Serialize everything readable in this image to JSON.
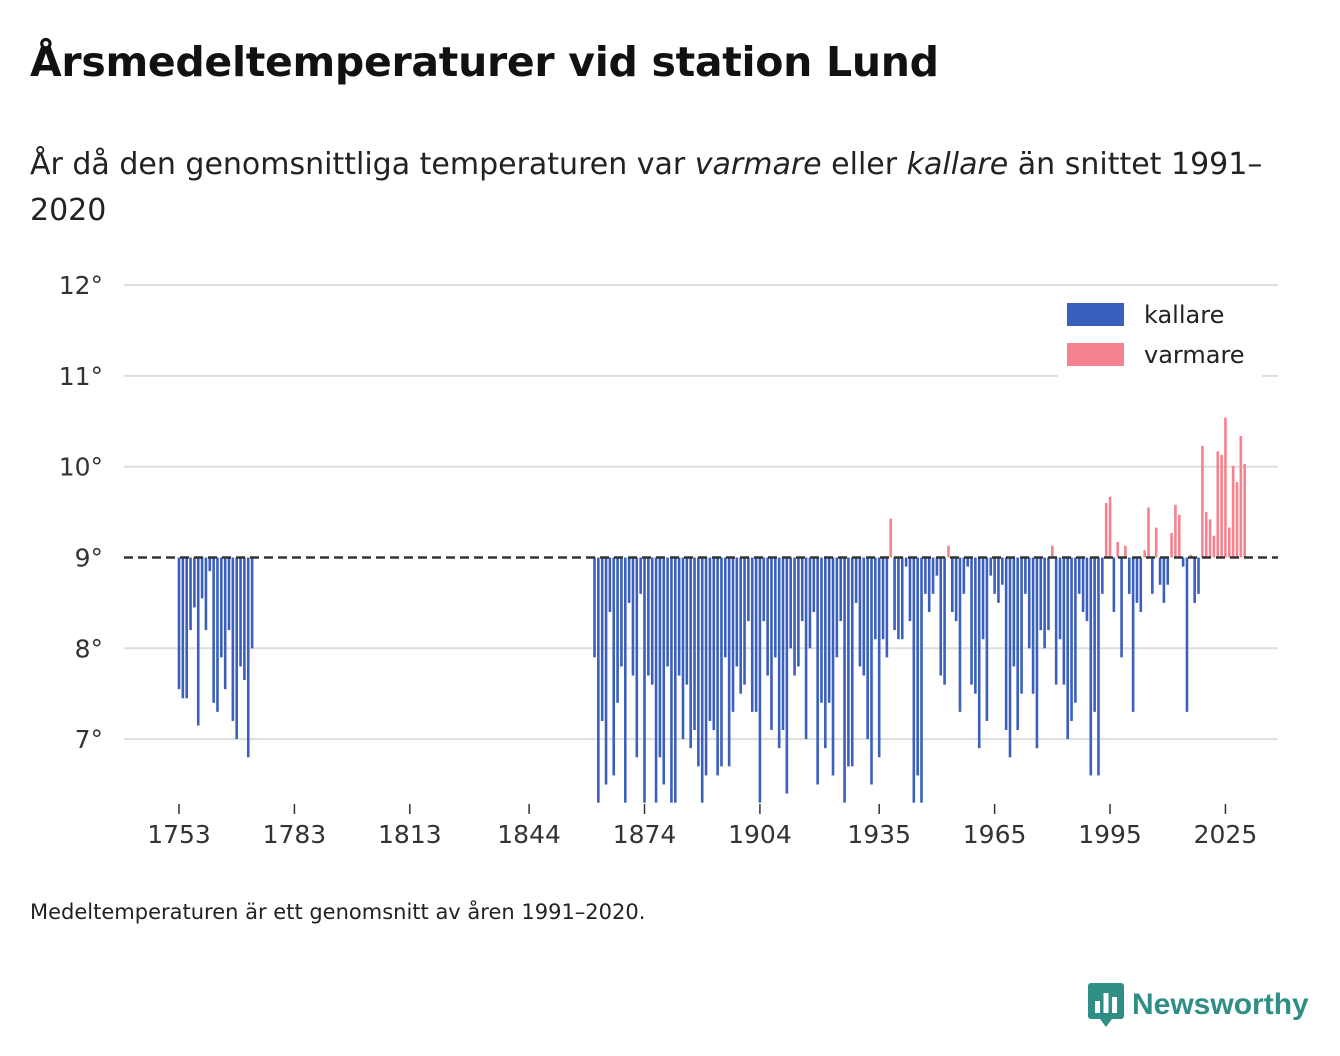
{
  "title": "Årsmedeltemperaturer vid station Lund",
  "subtitle": {
    "part1": "År då den genomsnittliga temperaturen var ",
    "warmer": "varmare",
    "part2": " eller ",
    "colder": "kallare",
    "part3": " än snittet 1991–2020"
  },
  "footnote": "Medeltemperaturen är ett genomsnitt av åren 1991–2020.",
  "logo": {
    "text": "Newsworthy",
    "icon": "newsworthy-chart-icon"
  },
  "colors": {
    "colder": "#3a5fbd",
    "warmer": "#f7828f",
    "grid": "#dddddd",
    "baseline": "#333333",
    "brand": "#2f8f87"
  },
  "chart_data": {
    "type": "bar",
    "baseline": 9.0,
    "ylim": [
      6.3,
      12.2
    ],
    "yticks": [
      7,
      8,
      9,
      10,
      11,
      12
    ],
    "ytick_labels": [
      "7°",
      "8°",
      "9°",
      "10°",
      "11°",
      "12°"
    ],
    "xlim": [
      1740,
      2040
    ],
    "xticks": [
      1753,
      1783,
      1813,
      1844,
      1874,
      1904,
      1935,
      1965,
      1995,
      2025
    ],
    "xtick_labels": [
      "1753",
      "1783",
      "1813",
      "1844",
      "1874",
      "1904",
      "1935",
      "1965",
      "1995",
      "2025"
    ],
    "legend": {
      "position": "top-right",
      "entries": [
        {
          "key": "colder",
          "label": "kallare"
        },
        {
          "key": "warmer",
          "label": "varmare"
        }
      ]
    },
    "segments": [
      {
        "start_year": 1753,
        "values": [
          7.55,
          7.45,
          7.45,
          8.2,
          8.45,
          7.15,
          8.55,
          8.2,
          8.85,
          7.4,
          7.3,
          7.9,
          7.55,
          8.2,
          7.2,
          7.0,
          7.8,
          7.65,
          6.8,
          8.0
        ]
      },
      {
        "start_year": 1861,
        "values": [
          7.9,
          6.3,
          7.2,
          6.5,
          8.4,
          6.6,
          7.4,
          7.8,
          6.3,
          8.5,
          7.7,
          6.8,
          8.6,
          6.25,
          7.7,
          7.6,
          6.3,
          6.8,
          6.5,
          7.8,
          6.3,
          6.3,
          7.7,
          7.0,
          7.6,
          6.9,
          7.1,
          6.7,
          6.3,
          6.6,
          7.2,
          7.1,
          6.6,
          6.7,
          7.9,
          6.7,
          7.3,
          7.8,
          7.5,
          7.6,
          8.3,
          7.3,
          7.3,
          6.3,
          8.3,
          7.7,
          7.1,
          7.9,
          6.9,
          7.1,
          6.4,
          8.0,
          7.7,
          7.8,
          8.3,
          7.0,
          8.0,
          8.4,
          6.5,
          7.4,
          6.9,
          7.4,
          6.6,
          7.9,
          8.3,
          6.3,
          6.7,
          6.7,
          8.5,
          7.8,
          7.7,
          7.0,
          6.5,
          8.1,
          6.8,
          8.1,
          7.9,
          9.43,
          8.2,
          8.1,
          8.1,
          8.9,
          8.3,
          6.3,
          6.6,
          6.3,
          8.6,
          8.4,
          8.6,
          8.8,
          7.7,
          7.6,
          9.13,
          8.4,
          8.3,
          7.3,
          8.6,
          8.9,
          7.6,
          7.5,
          6.9,
          8.1,
          7.2,
          8.8,
          8.6,
          8.5,
          8.7,
          7.1,
          6.8,
          7.8,
          7.1,
          7.5,
          8.6,
          8.0,
          7.5,
          6.9,
          8.2,
          8.0,
          8.2,
          9.13,
          7.6,
          8.1,
          7.6,
          7.0,
          7.2,
          7.4,
          8.6,
          8.4,
          8.3,
          6.6,
          7.3,
          6.6,
          8.6,
          9.6,
          9.67,
          8.4,
          9.17,
          7.9,
          9.13,
          8.6,
          7.3,
          8.5,
          8.4,
          9.08,
          9.55,
          8.6,
          9.33,
          8.7,
          8.5,
          8.7,
          9.27,
          9.58,
          9.47,
          8.9,
          7.3,
          9.03,
          8.5,
          8.6,
          10.23,
          9.5,
          9.42,
          9.24,
          10.17,
          10.13,
          10.54,
          9.33,
          10.01,
          9.83,
          10.34,
          10.03
        ]
      }
    ]
  }
}
